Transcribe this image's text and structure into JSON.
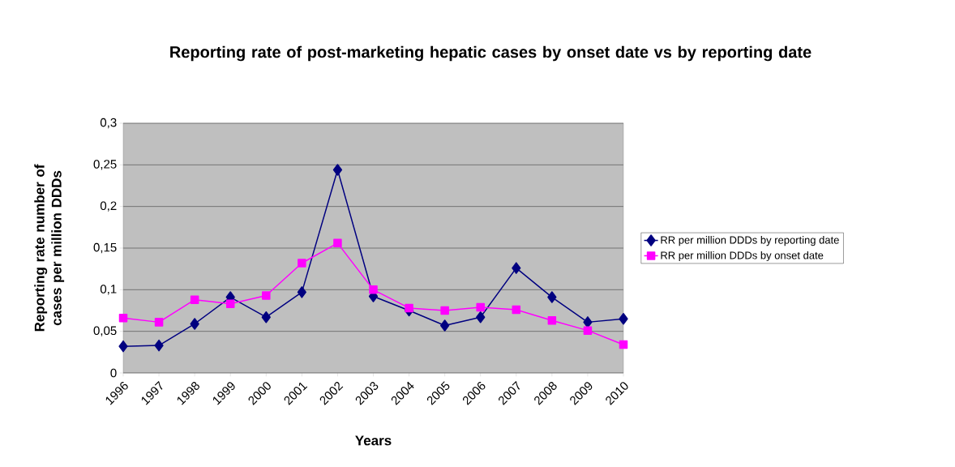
{
  "chart_data": {
    "type": "line",
    "title": "Reporting rate of post-marketing hepatic cases by onset date vs by reporting date",
    "xlabel": "Years",
    "ylabel": "Reporting rate number of cases per million DDDs",
    "categories": [
      "1996",
      "1997",
      "1998",
      "1999",
      "2000",
      "2001",
      "2002",
      "2003",
      "2004",
      "2005",
      "2006",
      "2007",
      "2008",
      "2009",
      "2010"
    ],
    "series": [
      {
        "name": "RR per million DDDs by reporting date",
        "color": "#000080",
        "marker": "diamond",
        "values": [
          0.032,
          0.033,
          0.059,
          0.091,
          0.067,
          0.097,
          0.244,
          0.092,
          0.075,
          0.057,
          0.067,
          0.126,
          0.091,
          0.061,
          0.065
        ]
      },
      {
        "name": "RR per million DDDs by onset date",
        "color": "#ff00ff",
        "marker": "square",
        "values": [
          0.066,
          0.061,
          0.088,
          0.083,
          0.093,
          0.132,
          0.156,
          0.1,
          0.078,
          0.075,
          0.079,
          0.076,
          0.063,
          0.051,
          0.034
        ]
      }
    ],
    "ylim": [
      0,
      0.3
    ],
    "yticks": [
      {
        "value": 0,
        "label": "0"
      },
      {
        "value": 0.05,
        "label": "0,05"
      },
      {
        "value": 0.1,
        "label": "0,1"
      },
      {
        "value": 0.15,
        "label": "0,15"
      },
      {
        "value": 0.2,
        "label": "0,2"
      },
      {
        "value": 0.25,
        "label": "0,25"
      },
      {
        "value": 0.3,
        "label": "0,3"
      }
    ],
    "grid": "y",
    "legend": "right"
  }
}
